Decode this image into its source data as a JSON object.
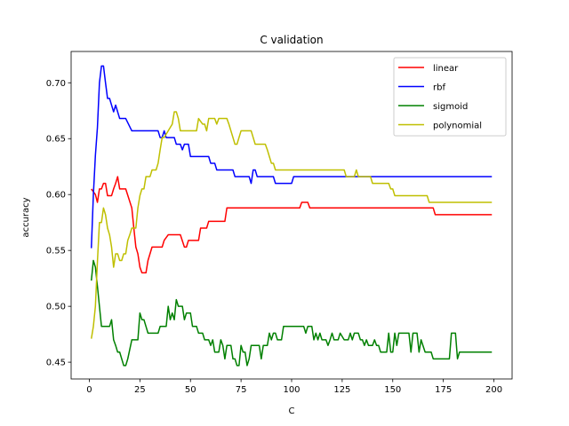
{
  "chart_data": {
    "type": "line",
    "title": "C validation",
    "xlabel": "C",
    "ylabel": "accuracy",
    "xlim": [
      -9,
      209
    ],
    "ylim": [
      0.435,
      0.728
    ],
    "xticks": [
      0,
      25,
      50,
      75,
      100,
      125,
      150,
      175,
      200
    ],
    "yticks": [
      0.45,
      0.5,
      0.55,
      0.6,
      0.65,
      0.7
    ],
    "ytick_labels": [
      "0.45",
      "0.50",
      "0.55",
      "0.60",
      "0.65",
      "0.70"
    ],
    "grid": false,
    "legend": "top-right",
    "series": [
      {
        "name": "linear",
        "color": "#ff0000",
        "points": [
          [
            1,
            0.605
          ],
          [
            3,
            0.6
          ],
          [
            4,
            0.593
          ],
          [
            5,
            0.605
          ],
          [
            6,
            0.605
          ],
          [
            7,
            0.61
          ],
          [
            8,
            0.61
          ],
          [
            9,
            0.599
          ],
          [
            11,
            0.599
          ],
          [
            12,
            0.605
          ],
          [
            13,
            0.61
          ],
          [
            14,
            0.616
          ],
          [
            15,
            0.605
          ],
          [
            18,
            0.605
          ],
          [
            21,
            0.588
          ],
          [
            22,
            0.57
          ],
          [
            23,
            0.553
          ],
          [
            24,
            0.547
          ],
          [
            25,
            0.535
          ],
          [
            26,
            0.53
          ],
          [
            28,
            0.53
          ],
          [
            29,
            0.541
          ],
          [
            31,
            0.553
          ],
          [
            36,
            0.553
          ],
          [
            37,
            0.559
          ],
          [
            39,
            0.564
          ],
          [
            45,
            0.564
          ],
          [
            47,
            0.553
          ],
          [
            48,
            0.553
          ],
          [
            49,
            0.559
          ],
          [
            54,
            0.559
          ],
          [
            55,
            0.57
          ],
          [
            58,
            0.57
          ],
          [
            59,
            0.576
          ],
          [
            67,
            0.576
          ],
          [
            68,
            0.588
          ],
          [
            104,
            0.588
          ],
          [
            105,
            0.593
          ],
          [
            108,
            0.593
          ],
          [
            109,
            0.588
          ],
          [
            170,
            0.588
          ],
          [
            171,
            0.582
          ],
          [
            199,
            0.582
          ]
        ]
      },
      {
        "name": "rbf",
        "color": "#0000ff",
        "points": [
          [
            1,
            0.552
          ],
          [
            2,
            0.6
          ],
          [
            3,
            0.635
          ],
          [
            4,
            0.66
          ],
          [
            5,
            0.7
          ],
          [
            6,
            0.715
          ],
          [
            7,
            0.715
          ],
          [
            8,
            0.7
          ],
          [
            9,
            0.686
          ],
          [
            10,
            0.686
          ],
          [
            11,
            0.68
          ],
          [
            12,
            0.674
          ],
          [
            13,
            0.68
          ],
          [
            14,
            0.674
          ],
          [
            15,
            0.668
          ],
          [
            18,
            0.668
          ],
          [
            21,
            0.657
          ],
          [
            34,
            0.657
          ],
          [
            35,
            0.651
          ],
          [
            36,
            0.651
          ],
          [
            37,
            0.657
          ],
          [
            38,
            0.651
          ],
          [
            42,
            0.651
          ],
          [
            43,
            0.645
          ],
          [
            45,
            0.645
          ],
          [
            46,
            0.64
          ],
          [
            47,
            0.645
          ],
          [
            49,
            0.645
          ],
          [
            50,
            0.634
          ],
          [
            59,
            0.634
          ],
          [
            60,
            0.628
          ],
          [
            62,
            0.628
          ],
          [
            63,
            0.622
          ],
          [
            71,
            0.622
          ],
          [
            72,
            0.616
          ],
          [
            79,
            0.616
          ],
          [
            80,
            0.61
          ],
          [
            81,
            0.622
          ],
          [
            82,
            0.622
          ],
          [
            83,
            0.616
          ],
          [
            91,
            0.616
          ],
          [
            92,
            0.61
          ],
          [
            100,
            0.61
          ],
          [
            101,
            0.616
          ],
          [
            199,
            0.616
          ]
        ]
      },
      {
        "name": "sigmoid",
        "color": "#008000",
        "points": [
          [
            1,
            0.523
          ],
          [
            2,
            0.541
          ],
          [
            3,
            0.535
          ],
          [
            4,
            0.518
          ],
          [
            5,
            0.5
          ],
          [
            6,
            0.482
          ],
          [
            10,
            0.482
          ],
          [
            11,
            0.488
          ],
          [
            12,
            0.47
          ],
          [
            13,
            0.465
          ],
          [
            14,
            0.459
          ],
          [
            15,
            0.459
          ],
          [
            16,
            0.453
          ],
          [
            17,
            0.447
          ],
          [
            18,
            0.447
          ],
          [
            19,
            0.453
          ],
          [
            21,
            0.47
          ],
          [
            24,
            0.47
          ],
          [
            25,
            0.494
          ],
          [
            26,
            0.488
          ],
          [
            27,
            0.488
          ],
          [
            28,
            0.482
          ],
          [
            29,
            0.476
          ],
          [
            34,
            0.476
          ],
          [
            35,
            0.482
          ],
          [
            38,
            0.482
          ],
          [
            39,
            0.5
          ],
          [
            40,
            0.488
          ],
          [
            41,
            0.494
          ],
          [
            42,
            0.488
          ],
          [
            43,
            0.506
          ],
          [
            44,
            0.5
          ],
          [
            46,
            0.5
          ],
          [
            47,
            0.488
          ],
          [
            48,
            0.494
          ],
          [
            50,
            0.494
          ],
          [
            51,
            0.482
          ],
          [
            53,
            0.482
          ],
          [
            54,
            0.476
          ],
          [
            56,
            0.476
          ],
          [
            57,
            0.47
          ],
          [
            59,
            0.47
          ],
          [
            60,
            0.465
          ],
          [
            61,
            0.47
          ],
          [
            62,
            0.459
          ],
          [
            64,
            0.459
          ],
          [
            65,
            0.47
          ],
          [
            66,
            0.465
          ],
          [
            67,
            0.453
          ],
          [
            68,
            0.465
          ],
          [
            70,
            0.465
          ],
          [
            71,
            0.453
          ],
          [
            72,
            0.453
          ],
          [
            73,
            0.447
          ],
          [
            74,
            0.447
          ],
          [
            75,
            0.465
          ],
          [
            76,
            0.459
          ],
          [
            77,
            0.459
          ],
          [
            78,
            0.447
          ],
          [
            79,
            0.453
          ],
          [
            80,
            0.465
          ],
          [
            84,
            0.465
          ],
          [
            85,
            0.453
          ],
          [
            86,
            0.465
          ],
          [
            88,
            0.465
          ],
          [
            89,
            0.476
          ],
          [
            90,
            0.47
          ],
          [
            91,
            0.476
          ],
          [
            92,
            0.476
          ],
          [
            93,
            0.47
          ],
          [
            95,
            0.47
          ],
          [
            96,
            0.482
          ],
          [
            106,
            0.482
          ],
          [
            107,
            0.476
          ],
          [
            108,
            0.482
          ],
          [
            110,
            0.482
          ],
          [
            111,
            0.47
          ],
          [
            112,
            0.476
          ],
          [
            113,
            0.47
          ],
          [
            114,
            0.476
          ],
          [
            115,
            0.47
          ],
          [
            117,
            0.47
          ],
          [
            118,
            0.465
          ],
          [
            119,
            0.47
          ],
          [
            120,
            0.476
          ],
          [
            121,
            0.47
          ],
          [
            123,
            0.47
          ],
          [
            124,
            0.476
          ],
          [
            126,
            0.47
          ],
          [
            128,
            0.47
          ],
          [
            129,
            0.476
          ],
          [
            130,
            0.47
          ],
          [
            131,
            0.476
          ],
          [
            133,
            0.476
          ],
          [
            134,
            0.47
          ],
          [
            135,
            0.47
          ],
          [
            136,
            0.465
          ],
          [
            137,
            0.47
          ],
          [
            138,
            0.465
          ],
          [
            140,
            0.465
          ],
          [
            141,
            0.47
          ],
          [
            142,
            0.465
          ],
          [
            143,
            0.465
          ],
          [
            144,
            0.459
          ],
          [
            147,
            0.459
          ],
          [
            148,
            0.476
          ],
          [
            149,
            0.459
          ],
          [
            150,
            0.459
          ],
          [
            151,
            0.476
          ],
          [
            152,
            0.465
          ],
          [
            153,
            0.476
          ],
          [
            158,
            0.476
          ],
          [
            159,
            0.459
          ],
          [
            160,
            0.476
          ],
          [
            162,
            0.476
          ],
          [
            163,
            0.459
          ],
          [
            164,
            0.47
          ],
          [
            166,
            0.459
          ],
          [
            169,
            0.459
          ],
          [
            170,
            0.453
          ],
          [
            178,
            0.453
          ],
          [
            179,
            0.476
          ],
          [
            181,
            0.476
          ],
          [
            182,
            0.453
          ],
          [
            183,
            0.459
          ],
          [
            199,
            0.459
          ]
        ]
      },
      {
        "name": "polynomial",
        "color": "#bfbf00",
        "points": [
          [
            1,
            0.471
          ],
          [
            2,
            0.482
          ],
          [
            3,
            0.5
          ],
          [
            4,
            0.54
          ],
          [
            5,
            0.575
          ],
          [
            6,
            0.575
          ],
          [
            7,
            0.588
          ],
          [
            8,
            0.582
          ],
          [
            9,
            0.57
          ],
          [
            10,
            0.564
          ],
          [
            11,
            0.553
          ],
          [
            12,
            0.535
          ],
          [
            13,
            0.547
          ],
          [
            14,
            0.547
          ],
          [
            15,
            0.541
          ],
          [
            16,
            0.541
          ],
          [
            17,
            0.547
          ],
          [
            18,
            0.547
          ],
          [
            19,
            0.559
          ],
          [
            20,
            0.564
          ],
          [
            21,
            0.57
          ],
          [
            23,
            0.57
          ],
          [
            24,
            0.588
          ],
          [
            25,
            0.599
          ],
          [
            26,
            0.605
          ],
          [
            27,
            0.605
          ],
          [
            28,
            0.616
          ],
          [
            30,
            0.616
          ],
          [
            31,
            0.622
          ],
          [
            33,
            0.622
          ],
          [
            34,
            0.628
          ],
          [
            35,
            0.64
          ],
          [
            36,
            0.651
          ],
          [
            37,
            0.651
          ],
          [
            39,
            0.657
          ],
          [
            41,
            0.663
          ],
          [
            42,
            0.674
          ],
          [
            43,
            0.674
          ],
          [
            44,
            0.668
          ],
          [
            45,
            0.657
          ],
          [
            53,
            0.657
          ],
          [
            54,
            0.668
          ],
          [
            56,
            0.663
          ],
          [
            57,
            0.663
          ],
          [
            58,
            0.657
          ],
          [
            59,
            0.668
          ],
          [
            62,
            0.668
          ],
          [
            63,
            0.663
          ],
          [
            64,
            0.668
          ],
          [
            68,
            0.668
          ],
          [
            69,
            0.663
          ],
          [
            70,
            0.657
          ],
          [
            71,
            0.651
          ],
          [
            72,
            0.645
          ],
          [
            73,
            0.645
          ],
          [
            74,
            0.651
          ],
          [
            75,
            0.657
          ],
          [
            80,
            0.657
          ],
          [
            81,
            0.651
          ],
          [
            82,
            0.645
          ],
          [
            87,
            0.645
          ],
          [
            88,
            0.64
          ],
          [
            89,
            0.634
          ],
          [
            90,
            0.628
          ],
          [
            91,
            0.628
          ],
          [
            92,
            0.622
          ],
          [
            126,
            0.622
          ],
          [
            127,
            0.616
          ],
          [
            131,
            0.616
          ],
          [
            132,
            0.622
          ],
          [
            133,
            0.616
          ],
          [
            139,
            0.616
          ],
          [
            140,
            0.61
          ],
          [
            148,
            0.61
          ],
          [
            149,
            0.605
          ],
          [
            150,
            0.605
          ],
          [
            151,
            0.599
          ],
          [
            167,
            0.599
          ],
          [
            168,
            0.593
          ],
          [
            199,
            0.593
          ]
        ]
      }
    ]
  }
}
